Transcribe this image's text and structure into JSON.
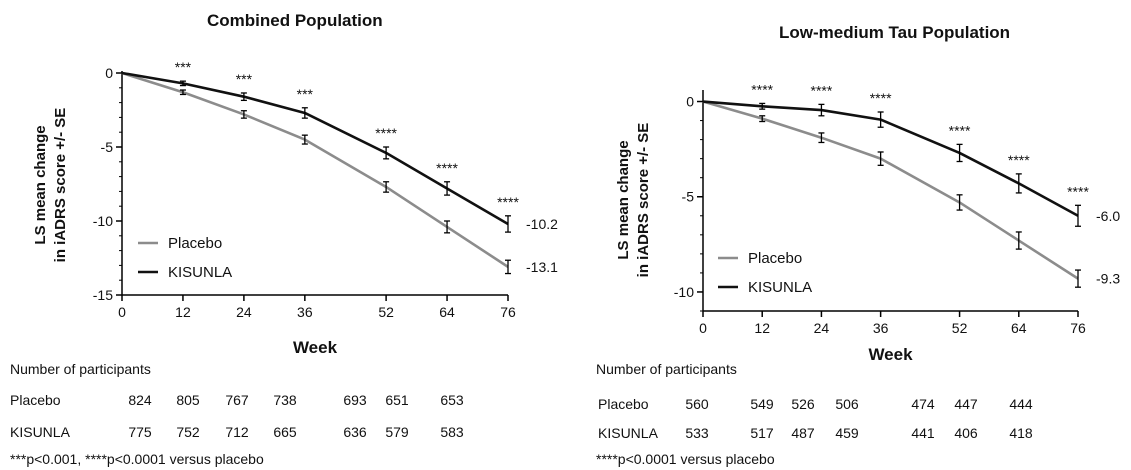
{
  "chart_data": [
    {
      "type": "line",
      "title": "Combined Population",
      "xlabel": "Week",
      "ylabel": "LS mean change in iADRS score +/- SE",
      "ylabel_lines": [
        "LS mean change",
        "in iADRS score +/- SE"
      ],
      "x": [
        0,
        12,
        24,
        36,
        52,
        64,
        76
      ],
      "xlim": [
        0,
        76
      ],
      "ylim": [
        -15,
        0
      ],
      "yticks": [
        0,
        -5,
        -10,
        -15
      ],
      "series": [
        {
          "name": "Placebo",
          "color": "#8c8c8c",
          "values": [
            0,
            -1.3,
            -2.8,
            -4.5,
            -7.7,
            -10.4,
            -13.1
          ],
          "se": [
            0,
            0.15,
            0.25,
            0.3,
            0.35,
            0.4,
            0.45
          ],
          "end_label": "-13.1"
        },
        {
          "name": "KISUNLA",
          "color": "#111111",
          "values": [
            0,
            -0.7,
            -1.6,
            -2.7,
            -5.4,
            -7.8,
            -10.2
          ],
          "se": [
            0,
            0.15,
            0.25,
            0.35,
            0.4,
            0.45,
            0.55
          ],
          "end_label": "-10.2"
        }
      ],
      "significance": [
        "",
        "***",
        "***",
        "***",
        "****",
        "****",
        "****"
      ],
      "legend_position": "lower-left",
      "participants": {
        "heading": "Number of participants",
        "rows": [
          {
            "label": "Placebo",
            "values": [
              "824",
              "805",
              "767",
              "738",
              "693",
              "651",
              "653"
            ]
          },
          {
            "label": "KISUNLA",
            "values": [
              "775",
              "752",
              "712",
              "665",
              "636",
              "579",
              "583"
            ]
          }
        ]
      },
      "footnote": "***p<0.001, ****p<0.0001 versus placebo"
    },
    {
      "type": "line",
      "title": "Low-medium Tau Population",
      "xlabel": "Week",
      "ylabel": "LS mean change in iADRS score +/- SE",
      "ylabel_lines": [
        "LS mean change",
        "in iADRS score +/- SE"
      ],
      "x": [
        0,
        12,
        24,
        36,
        52,
        64,
        76
      ],
      "xlim": [
        0,
        76
      ],
      "ylim": [
        -11,
        0.5
      ],
      "yticks": [
        0,
        -5,
        -10
      ],
      "series": [
        {
          "name": "Placebo",
          "color": "#8c8c8c",
          "values": [
            0,
            -0.9,
            -1.9,
            -3.0,
            -5.3,
            -7.3,
            -9.3
          ],
          "se": [
            0,
            0.15,
            0.25,
            0.35,
            0.4,
            0.45,
            0.45
          ],
          "end_label": "-9.3"
        },
        {
          "name": "KISUNLA",
          "color": "#111111",
          "values": [
            0,
            -0.25,
            -0.45,
            -0.95,
            -2.7,
            -4.3,
            -6.0
          ],
          "se": [
            0,
            0.15,
            0.3,
            0.4,
            0.45,
            0.5,
            0.55
          ],
          "end_label": "-6.0"
        }
      ],
      "significance": [
        "",
        "****",
        "****",
        "****",
        "****",
        "****",
        "****"
      ],
      "legend_position": "lower-left",
      "participants": {
        "heading": "Number of participants",
        "rows": [
          {
            "label": "Placebo",
            "values": [
              "560",
              "549",
              "526",
              "506",
              "474",
              "447",
              "444"
            ]
          },
          {
            "label": "KISUNLA",
            "values": [
              "533",
              "517",
              "487",
              "459",
              "441",
              "406",
              "418"
            ]
          }
        ]
      },
      "footnote": "****p<0.0001 versus placebo"
    }
  ]
}
